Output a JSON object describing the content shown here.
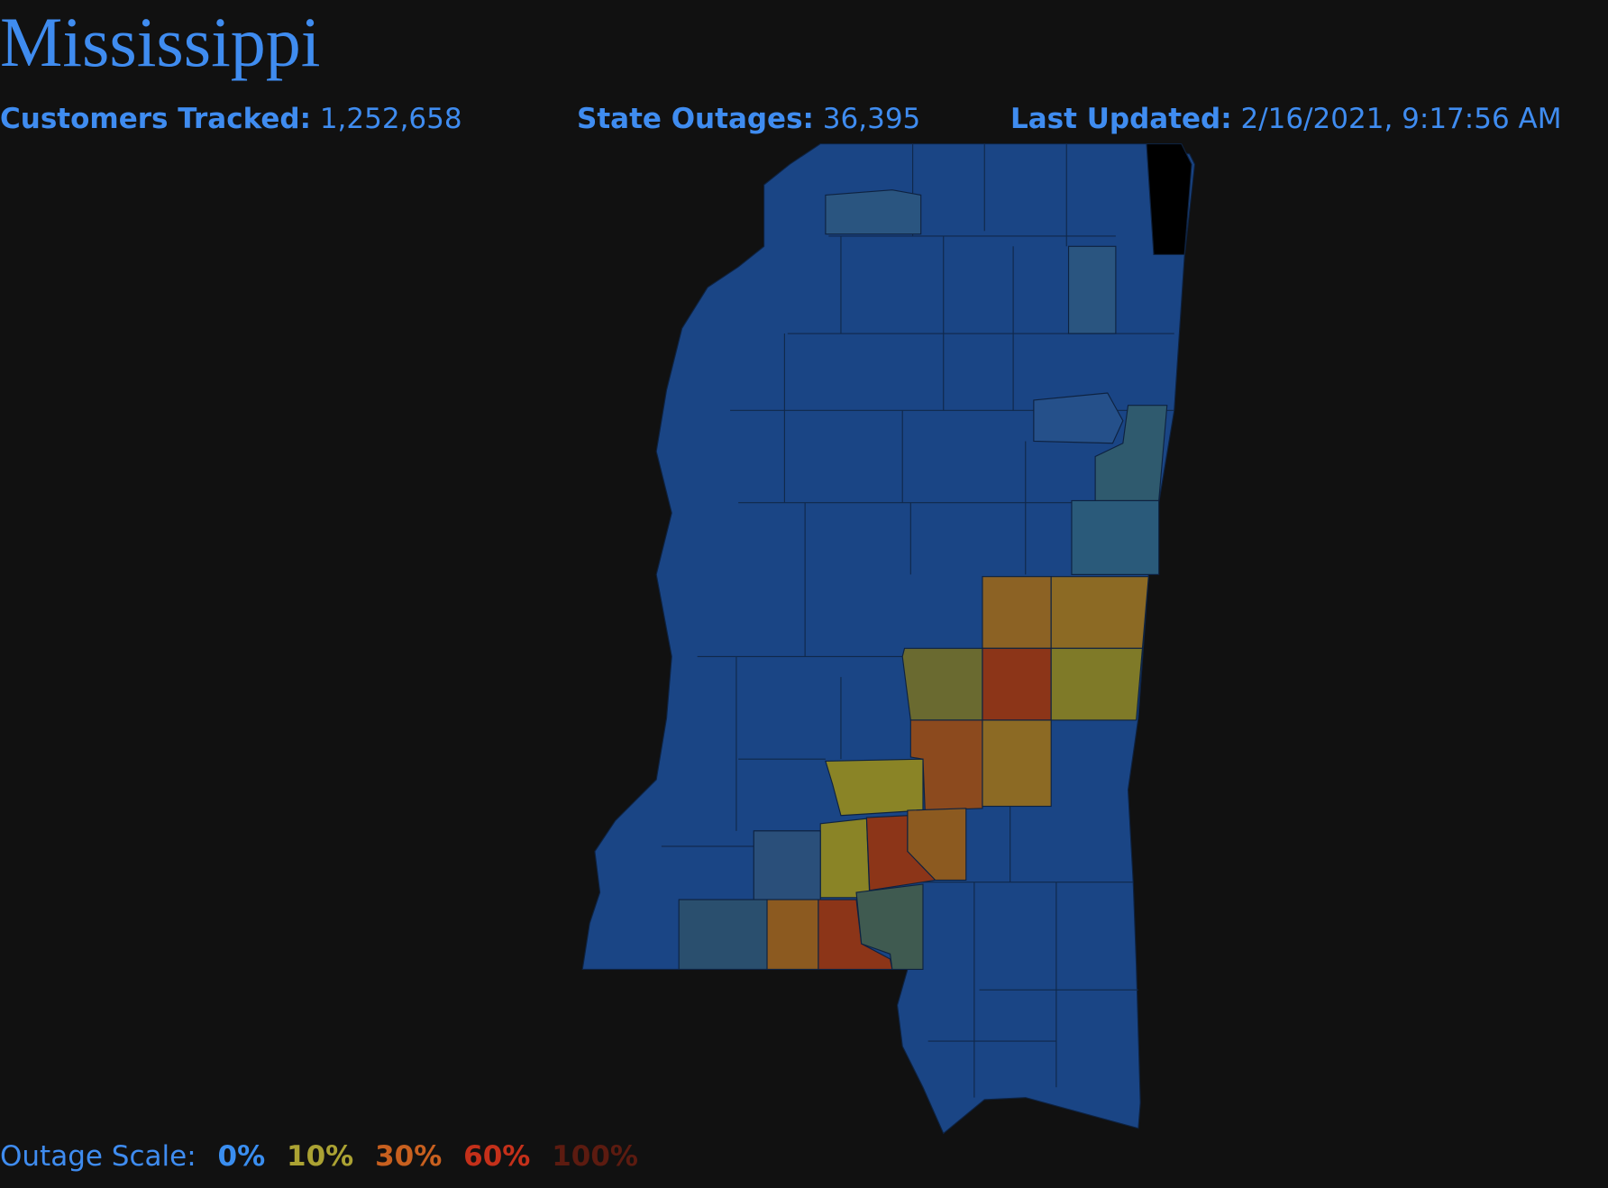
{
  "header": {
    "title": "Mississippi",
    "stats": [
      {
        "label": "Customers Tracked:",
        "value": "1,252,658"
      },
      {
        "label": "State Outages:",
        "value": "36,395"
      },
      {
        "label": "Last Updated:",
        "value": "2/16/2021, 9:17:56 AM"
      }
    ]
  },
  "legend": {
    "label": "Outage Scale:",
    "steps": [
      "0%",
      "10%",
      "30%",
      "60%",
      "100%"
    ]
  }
}
